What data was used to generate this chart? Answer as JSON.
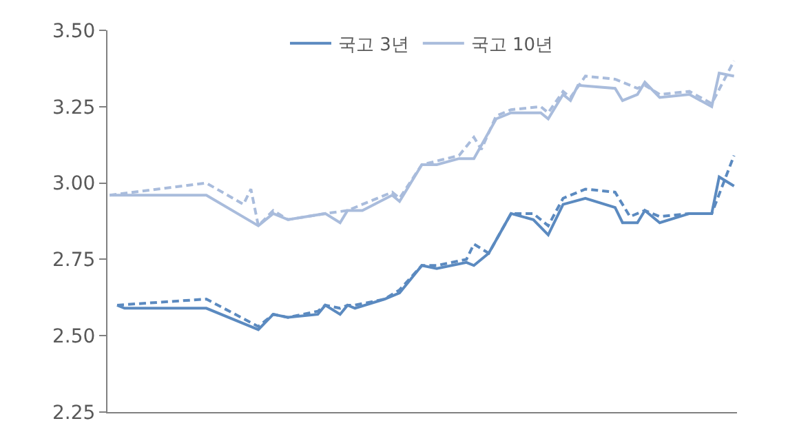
{
  "chart_data": {
    "type": "line",
    "legend": "top",
    "tick_labels": "y",
    "marker": "none",
    "categories": [
      null,
      null,
      null,
      null,
      null,
      null,
      null,
      null,
      null,
      null,
      null,
      null,
      null,
      null,
      null,
      null,
      null,
      null,
      null,
      null,
      null,
      null,
      null,
      null,
      null,
      null,
      null,
      null,
      null,
      null,
      null,
      null,
      null,
      null,
      null,
      null,
      null,
      null,
      null,
      null,
      null,
      null,
      null,
      null,
      null,
      null,
      null,
      null,
      null,
      null,
      null,
      null,
      null,
      null,
      null,
      null,
      null,
      null,
      null,
      null,
      null,
      null,
      null,
      null,
      null,
      null,
      null,
      null,
      null,
      null,
      null,
      null,
      null,
      null,
      null,
      null,
      null,
      null,
      null,
      null,
      null,
      null,
      null,
      null,
      null
    ],
    "ylim": [
      2.25,
      3.5
    ],
    "yticks": [
      {
        "value": 2.25,
        "label": "2.25"
      },
      {
        "value": 2.5,
        "label": "2.50"
      },
      {
        "value": 2.75,
        "label": "2.75"
      },
      {
        "value": 3.0,
        "label": "3.00"
      },
      {
        "value": 3.25,
        "label": "3.25"
      },
      {
        "value": 3.5,
        "label": "3.50"
      }
    ],
    "series": [
      {
        "name": "국고 3년",
        "color": "#5b8ac0",
        "line_style": "solid",
        "values": [
          null,
          2.6,
          2.59,
          null,
          null,
          null,
          null,
          null,
          null,
          null,
          null,
          null,
          null,
          2.59,
          null,
          null,
          null,
          null,
          null,
          null,
          2.52,
          null,
          2.57,
          null,
          2.56,
          null,
          null,
          null,
          2.57,
          2.6,
          null,
          2.57,
          2.6,
          2.59,
          null,
          null,
          null,
          2.62,
          null,
          2.64,
          null,
          null,
          2.73,
          null,
          2.72,
          null,
          null,
          null,
          2.74,
          2.73,
          null,
          2.77,
          null,
          null,
          2.9,
          null,
          null,
          2.88,
          null,
          2.83,
          null,
          2.93,
          null,
          null,
          2.95,
          null,
          null,
          null,
          2.92,
          2.87,
          null,
          2.87,
          2.91,
          null,
          2.87,
          null,
          null,
          null,
          2.9,
          null,
          null,
          2.9,
          3.02,
          null,
          2.99
        ]
      },
      {
        "name": "국고 10년",
        "color": "#a9bcdc",
        "line_style": "solid",
        "values": [
          2.96,
          null,
          null,
          null,
          null,
          null,
          null,
          null,
          null,
          null,
          null,
          null,
          null,
          2.96,
          null,
          null,
          null,
          null,
          null,
          null,
          2.86,
          null,
          2.9,
          null,
          2.88,
          null,
          null,
          null,
          null,
          2.9,
          null,
          2.87,
          2.91,
          null,
          2.91,
          null,
          null,
          null,
          2.96,
          2.94,
          null,
          null,
          3.06,
          null,
          3.06,
          null,
          null,
          3.08,
          null,
          3.08,
          null,
          null,
          3.21,
          null,
          3.23,
          null,
          null,
          null,
          3.23,
          3.21,
          null,
          3.29,
          3.27,
          3.32,
          null,
          null,
          null,
          null,
          3.31,
          3.27,
          null,
          3.29,
          3.33,
          null,
          3.28,
          null,
          null,
          null,
          3.29,
          null,
          null,
          3.25,
          3.36,
          null,
          3.35
        ]
      },
      {
        "color": "#5b8ac0",
        "line_style": "dashed",
        "values": [
          null,
          2.6,
          null,
          null,
          null,
          null,
          null,
          null,
          null,
          null,
          null,
          null,
          null,
          2.62,
          null,
          null,
          null,
          null,
          null,
          null,
          2.53,
          null,
          2.57,
          null,
          2.56,
          null,
          null,
          null,
          2.58,
          2.6,
          null,
          2.59,
          2.6,
          2.6,
          null,
          null,
          null,
          2.62,
          null,
          2.65,
          null,
          null,
          2.73,
          null,
          2.73,
          null,
          null,
          null,
          2.75,
          2.8,
          null,
          2.77,
          null,
          null,
          2.9,
          null,
          null,
          2.9,
          null,
          2.86,
          null,
          2.95,
          null,
          null,
          2.98,
          null,
          null,
          null,
          2.97,
          null,
          2.89,
          null,
          2.91,
          null,
          2.89,
          null,
          null,
          null,
          2.9,
          null,
          null,
          2.9,
          null,
          null,
          3.09
        ]
      },
      {
        "color": "#a9bcdc",
        "line_style": "dashed",
        "values": [
          2.96,
          null,
          null,
          null,
          null,
          null,
          null,
          null,
          null,
          null,
          null,
          null,
          null,
          3.0,
          null,
          null,
          null,
          null,
          2.93,
          2.98,
          2.86,
          null,
          2.91,
          null,
          2.88,
          null,
          null,
          null,
          null,
          2.9,
          null,
          null,
          2.91,
          null,
          null,
          null,
          null,
          null,
          2.97,
          2.95,
          null,
          null,
          3.06,
          null,
          null,
          null,
          null,
          3.09,
          null,
          3.15,
          3.11,
          null,
          3.22,
          null,
          3.24,
          null,
          null,
          null,
          3.25,
          3.23,
          null,
          3.3,
          3.28,
          null,
          3.35,
          null,
          null,
          null,
          3.34,
          null,
          null,
          3.31,
          3.32,
          null,
          3.29,
          null,
          null,
          null,
          3.3,
          null,
          null,
          3.26,
          null,
          null,
          3.4
        ]
      }
    ]
  }
}
